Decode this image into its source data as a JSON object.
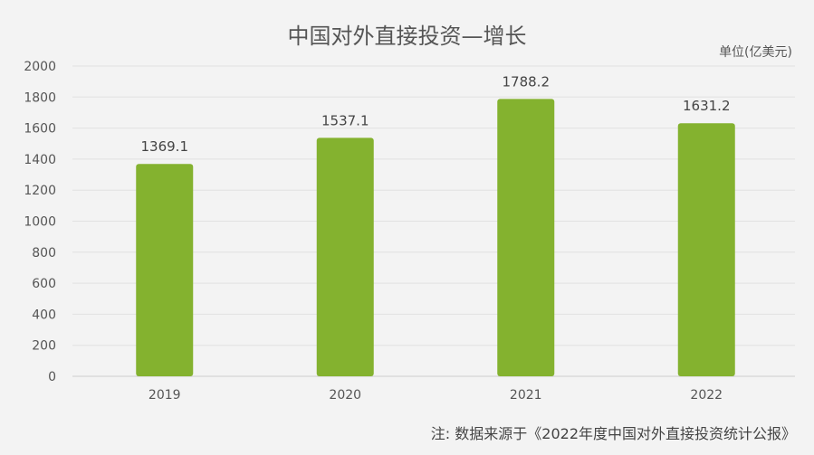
{
  "chart_data": {
    "type": "bar",
    "title": "中国对外直接投资—增长",
    "unit": "单位(亿美元)",
    "categories": [
      "2019",
      "2020",
      "2021",
      "2022"
    ],
    "values": [
      1369.1,
      1537.1,
      1788.2,
      1631.2
    ],
    "data_labels": [
      "1369.1",
      "1537.1",
      "1788.2",
      "1631.2"
    ],
    "ylim": [
      0,
      2000
    ],
    "yticks": [
      0,
      200,
      400,
      600,
      800,
      1000,
      1200,
      1400,
      1600,
      1800,
      2000
    ],
    "grid": true,
    "bar_color": "#84b22f"
  },
  "source": "注: 数据来源于《2022年度中国对外直接投资统计公报》"
}
